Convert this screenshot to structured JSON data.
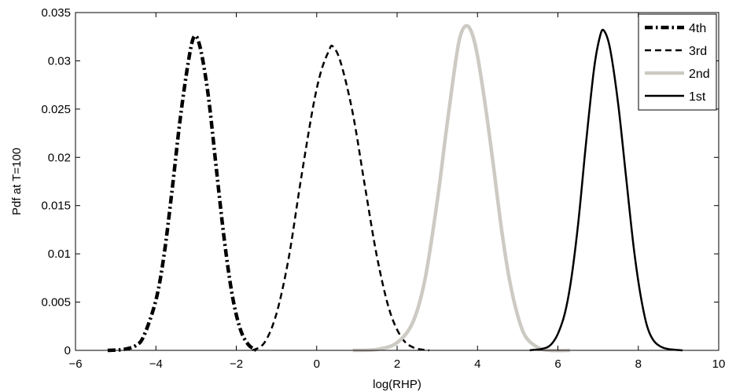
{
  "chart_data": {
    "type": "line",
    "title": "",
    "xlabel": "log(RHP)",
    "ylabel": "Pdf at T=100",
    "xlim": [
      -6,
      10
    ],
    "ylim": [
      0,
      0.035
    ],
    "xticks": [
      -6,
      -4,
      -2,
      0,
      2,
      4,
      6,
      8,
      10
    ],
    "xtick_labels": [
      "−6",
      "−4",
      "−2",
      "0",
      "2",
      "4",
      "6",
      "8",
      "10"
    ],
    "yticks": [
      0,
      0.005,
      0.01,
      0.015,
      0.02,
      0.025,
      0.03,
      0.035
    ],
    "ytick_labels": [
      "0",
      "0.005",
      "0.01",
      "0.015",
      "0.02",
      "0.025",
      "0.03",
      "0.035"
    ],
    "grid": false,
    "legend_position": "top-right",
    "series": [
      {
        "name": "4th",
        "style": "dash-dot",
        "color": "#000000",
        "width": "thick",
        "x": [
          -5.2,
          -4.8,
          -4.5,
          -4.3,
          -4.0,
          -3.8,
          -3.6,
          -3.4,
          -3.2,
          -3.05,
          -2.9,
          -2.7,
          -2.5,
          -2.3,
          -2.1,
          -1.9,
          -1.7,
          -1.5
        ],
        "y": [
          0,
          0.0001,
          0.0005,
          0.0015,
          0.0052,
          0.0098,
          0.0165,
          0.0238,
          0.0297,
          0.0325,
          0.0314,
          0.0265,
          0.019,
          0.0115,
          0.0057,
          0.0022,
          0.0006,
          0
        ]
      },
      {
        "name": "3rd",
        "style": "dashed",
        "color": "#000000",
        "width": "medium",
        "x": [
          -1.6,
          -1.3,
          -1.0,
          -0.7,
          -0.4,
          -0.1,
          0.1,
          0.3,
          0.4,
          0.6,
          0.9,
          1.2,
          1.5,
          1.8,
          2.1,
          2.4,
          2.8
        ],
        "y": [
          0,
          0.0008,
          0.0038,
          0.0095,
          0.0175,
          0.025,
          0.0288,
          0.031,
          0.0315,
          0.0298,
          0.0245,
          0.017,
          0.0097,
          0.0043,
          0.0014,
          0.0003,
          0
        ]
      },
      {
        "name": "2nd",
        "style": "solid",
        "color": "#cdcac4",
        "width": "thick",
        "x": [
          0.9,
          1.5,
          2.0,
          2.4,
          2.7,
          3.0,
          3.2,
          3.4,
          3.55,
          3.7,
          3.85,
          4.0,
          4.2,
          4.4,
          4.6,
          4.8,
          5.0,
          5.2,
          5.5,
          5.8,
          6.3
        ],
        "y": [
          0,
          0.0001,
          0.0008,
          0.003,
          0.0075,
          0.0155,
          0.022,
          0.0283,
          0.0322,
          0.0336,
          0.033,
          0.0305,
          0.0252,
          0.019,
          0.0125,
          0.0072,
          0.0036,
          0.0014,
          0.0003,
          0,
          0
        ]
      },
      {
        "name": "1st",
        "style": "solid",
        "color": "#000000",
        "width": "medium",
        "x": [
          5.3,
          5.8,
          6.1,
          6.3,
          6.5,
          6.7,
          6.9,
          7.05,
          7.15,
          7.3,
          7.5,
          7.7,
          7.9,
          8.1,
          8.3,
          8.6,
          9.1
        ],
        "y": [
          0,
          0.0005,
          0.0028,
          0.0065,
          0.013,
          0.0215,
          0.0292,
          0.0326,
          0.0331,
          0.0312,
          0.0255,
          0.0178,
          0.0102,
          0.0047,
          0.0016,
          0.0003,
          0
        ]
      }
    ]
  }
}
